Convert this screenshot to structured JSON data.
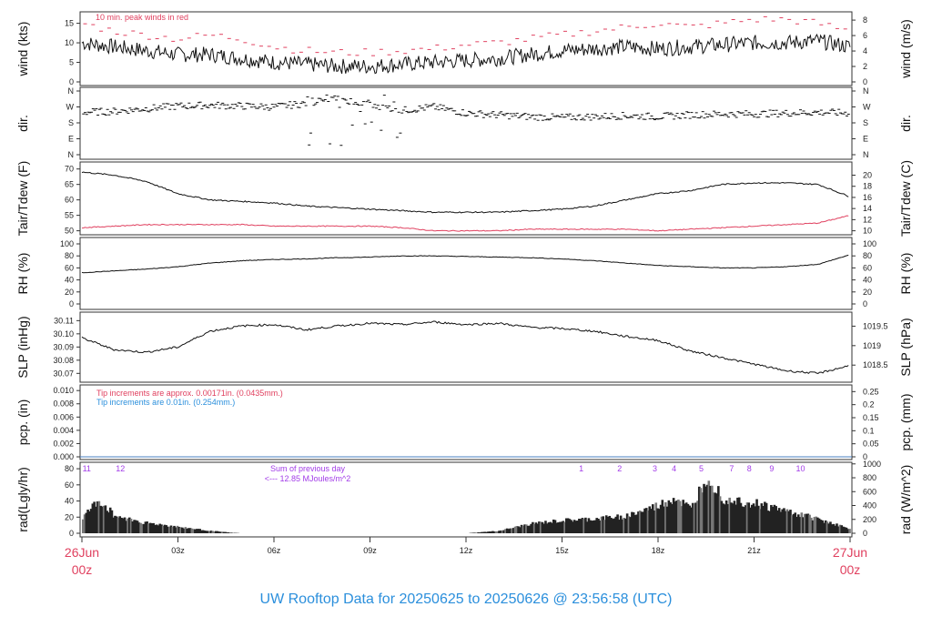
{
  "title": "UW Rooftop Data for 20250625  to  20250626 @ 23:56:58  (UTC)",
  "colors": {
    "title": "#2b8fdc",
    "peak": "#e0405f",
    "dew": "#e0405f",
    "note_red": "#e0405f",
    "note_blue": "#2b8fdc",
    "hour_labels": "#a23ce8",
    "date_labels": "#e0405f"
  },
  "x_axis": {
    "start_label": [
      "26Jun",
      "00z"
    ],
    "end_label": [
      "27Jun",
      "00z"
    ],
    "tick_labels": [
      "03z",
      "06z",
      "09z",
      "12z",
      "15z",
      "18z",
      "21z"
    ],
    "range_hours": [
      0,
      24
    ]
  },
  "chart_data": [
    {
      "type": "line",
      "panel": "wind",
      "ylabel": "wind (kts)",
      "ylabel_right": "wind (m/s)",
      "ylim": [
        0,
        17
      ],
      "yticks": [
        0,
        5,
        10,
        15
      ],
      "yticks_right": [
        0,
        2,
        4,
        6,
        8
      ],
      "annotation": "10 min. peak winds in red",
      "x_hours": [
        0,
        1,
        2,
        3,
        4,
        5,
        6,
        7,
        8,
        9,
        10,
        11,
        12,
        13,
        14,
        15,
        16,
        17,
        18,
        19,
        20,
        21,
        22,
        23,
        24
      ],
      "series": [
        {
          "values": [
            10,
            9,
            8,
            7,
            7,
            6,
            5,
            4.5,
            4,
            4,
            4.5,
            5,
            5.5,
            6,
            7,
            8,
            8.5,
            9,
            8.5,
            9,
            9.5,
            10,
            10,
            10.5,
            9
          ]
        },
        {
          "values": [
            15,
            13,
            12,
            11,
            12,
            11,
            9,
            8,
            7.5,
            7.5,
            8,
            8.5,
            9.5,
            10,
            11,
            12,
            13,
            14,
            15,
            14,
            15,
            16,
            16,
            15,
            13
          ],
          "style": "peak"
        }
      ]
    },
    {
      "type": "scatter",
      "panel": "dir",
      "ylabel": "dir.",
      "ylabel_right": "dir.",
      "yticks": [
        "N",
        "E",
        "S",
        "W",
        "N"
      ],
      "ylim_deg": [
        0,
        360
      ],
      "x_hours": [
        0,
        1,
        2,
        3,
        4,
        5,
        6,
        7,
        8,
        9,
        10,
        11,
        12,
        13,
        14,
        15,
        16,
        17,
        18,
        19,
        20,
        21,
        22,
        23,
        24
      ],
      "values_deg": [
        240,
        245,
        260,
        275,
        280,
        275,
        270,
        290,
        320,
        280,
        250,
        270,
        235,
        225,
        215,
        210,
        215,
        220,
        215,
        225,
        230,
        230,
        235,
        240,
        235
      ]
    },
    {
      "type": "line",
      "panel": "temp",
      "ylabel": "Tair/Tdew (F)",
      "ylabel_right": "Tair/Tdew (C)",
      "ylim": [
        49,
        70.5
      ],
      "yticks": [
        50,
        55,
        60,
        65,
        70
      ],
      "yticks_right": [
        10,
        12,
        14,
        16,
        18,
        20
      ],
      "x_hours": [
        0,
        1,
        2,
        3,
        4,
        5,
        6,
        7,
        8,
        9,
        10,
        11,
        12,
        13,
        14,
        15,
        16,
        17,
        18,
        19,
        20,
        21,
        22,
        23,
        24
      ],
      "series": [
        {
          "values": [
            69,
            68,
            66,
            62,
            60,
            59.5,
            59,
            58,
            57.5,
            57,
            56.5,
            56,
            56,
            56,
            56.5,
            57,
            58,
            60,
            62,
            63,
            65,
            65.5,
            65.5,
            65,
            61
          ]
        },
        {
          "values": [
            51,
            51.5,
            52,
            52,
            52,
            52,
            51.5,
            51.5,
            51.5,
            51.5,
            51,
            50,
            50,
            50,
            50.5,
            50.5,
            50.5,
            50.5,
            50,
            50.5,
            51,
            51.5,
            52,
            52.5,
            55
          ],
          "style": "dew"
        }
      ]
    },
    {
      "type": "line",
      "panel": "rh",
      "ylabel": "RH (%)",
      "ylabel_right": "RH (%)",
      "ylim": [
        0,
        100
      ],
      "yticks": [
        0,
        20,
        40,
        60,
        80,
        100
      ],
      "x_hours": [
        0,
        1,
        2,
        3,
        4,
        5,
        6,
        7,
        8,
        9,
        10,
        11,
        12,
        13,
        14,
        15,
        16,
        17,
        18,
        19,
        20,
        21,
        22,
        23,
        24
      ],
      "values": [
        52,
        55,
        58,
        62,
        68,
        72,
        74,
        75,
        77,
        78,
        80,
        80,
        79,
        78,
        77,
        75,
        72,
        68,
        64,
        62,
        60,
        60,
        62,
        66,
        82
      ]
    },
    {
      "type": "line",
      "panel": "slp",
      "ylabel": "SLP (inHg)",
      "ylabel_right": "SLP (hPa)",
      "ylim": [
        30.064,
        30.113
      ],
      "yticks": [
        30.07,
        30.08,
        30.09,
        30.1,
        30.11
      ],
      "yticks_right": [
        1018.5,
        1019,
        1019.5
      ],
      "x_hours": [
        0,
        1,
        2,
        3,
        4,
        5,
        6,
        7,
        8,
        9,
        10,
        11,
        12,
        13,
        14,
        15,
        16,
        17,
        18,
        19,
        20,
        21,
        22,
        23,
        24
      ],
      "values": [
        30.097,
        30.088,
        30.086,
        30.09,
        30.102,
        30.106,
        30.107,
        30.103,
        30.106,
        30.108,
        30.107,
        30.109,
        30.107,
        30.108,
        30.105,
        30.104,
        30.102,
        30.098,
        30.095,
        30.087,
        30.082,
        30.077,
        30.072,
        30.07,
        30.076
      ]
    },
    {
      "type": "line",
      "panel": "pcp",
      "ylabel": "pcp. (in)",
      "ylabel_right": "pcp. (mm)",
      "ylim": [
        0,
        0.0105
      ],
      "yticks": [
        0,
        0.002,
        0.004,
        0.006,
        0.008,
        0.01
      ],
      "yticks_right": [
        0,
        0.05,
        0.1,
        0.15,
        0.2,
        0.25
      ],
      "notes": [
        "Tip increments are approx. 0.00171in. (0.0435mm.)",
        "Tip increments are 0.01in. (0.254mm.)"
      ],
      "x_hours": [
        0,
        24
      ],
      "values": [
        0,
        0
      ]
    },
    {
      "type": "bar",
      "panel": "rad",
      "ylabel": "rad(Lgly/hr)",
      "ylabel_right": "rad (W/m^2)",
      "ylim": [
        0,
        88
      ],
      "yticks": [
        0,
        20,
        40,
        60,
        80
      ],
      "yticks_right": [
        0,
        200,
        400,
        600,
        800,
        1000
      ],
      "annotation": [
        "Sum of previous day",
        "<--- 12.85 MJoules/m^2"
      ],
      "hour_labels": [
        {
          "t": 0.15,
          "label": "11"
        },
        {
          "t": 1.2,
          "label": "12"
        },
        {
          "t": 15.6,
          "label": "1"
        },
        {
          "t": 16.8,
          "label": "2"
        },
        {
          "t": 17.9,
          "label": "3"
        },
        {
          "t": 18.5,
          "label": "4"
        },
        {
          "t": 19.35,
          "label": "5"
        },
        {
          "t": 20.3,
          "label": "7"
        },
        {
          "t": 20.85,
          "label": "8"
        },
        {
          "t": 21.55,
          "label": "9"
        },
        {
          "t": 22.45,
          "label": "10"
        }
      ],
      "x_hours": [
        0,
        0.5,
        1,
        2,
        3,
        4,
        4.7,
        5,
        12,
        13,
        14,
        15,
        16,
        17,
        18,
        18.5,
        19,
        19.5,
        20,
        21,
        22,
        23,
        24
      ],
      "values": [
        20,
        42,
        22,
        13,
        8,
        3,
        0.5,
        0,
        0,
        3,
        12,
        16,
        18,
        22,
        35,
        45,
        30,
        75,
        45,
        38,
        28,
        18,
        5
      ]
    }
  ]
}
